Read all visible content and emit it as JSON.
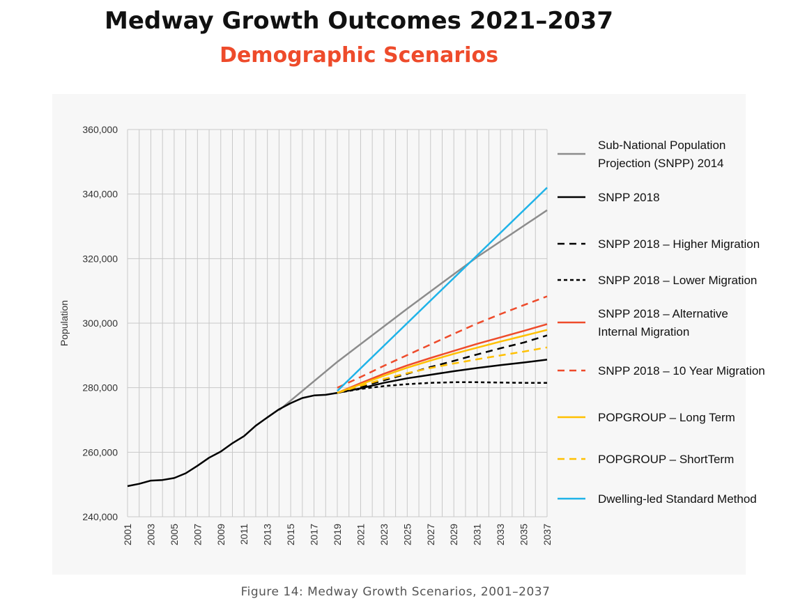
{
  "header": {
    "title": "Medway Growth Outcomes 2021–2037",
    "subtitle": "Demographic Scenarios"
  },
  "caption": "Figure 14: Medway Growth Scenarios, 2001–2037",
  "colors": {
    "title": "#111111",
    "subtitle": "#ee4b2b",
    "panel_background": "#f7f7f7",
    "grid": "#c8c8c8"
  },
  "chart_data": {
    "type": "line",
    "title": "",
    "xlabel": "",
    "ylabel": "Population",
    "xlim": [
      2001,
      2037
    ],
    "ylim": [
      240000,
      360000
    ],
    "grid": true,
    "legend_position": "right",
    "x_ticks": [
      "2001",
      "2003",
      "2005",
      "2007",
      "2009",
      "2011",
      "2013",
      "2015",
      "2017",
      "2019",
      "2021",
      "2023",
      "2025",
      "2027",
      "2029",
      "2031",
      "2033",
      "2035",
      "2037"
    ],
    "y_ticks": [
      "240,000",
      "260,000",
      "280,000",
      "300,000",
      "320,000",
      "340,000",
      "360,000"
    ],
    "y_tick_values": [
      240000,
      260000,
      280000,
      300000,
      320000,
      340000,
      360000
    ],
    "series": [
      {
        "name": "Sub-National Population Projection (SNPP) 2014",
        "legend_lines": [
          "Sub-National Population",
          "Projection (SNPP) 2014"
        ],
        "color": "#8c8c8c",
        "dash": "solid",
        "points": [
          [
            2014,
            273000
          ],
          [
            2019,
            288000
          ],
          [
            2025,
            304500
          ],
          [
            2031,
            320500
          ],
          [
            2037,
            335000
          ]
        ]
      },
      {
        "name": "SNPP 2018",
        "legend_lines": [
          "SNPP 2018"
        ],
        "color": "#000000",
        "dash": "solid",
        "points": [
          [
            2001,
            249500
          ],
          [
            2002,
            250200
          ],
          [
            2003,
            251200
          ],
          [
            2004,
            251400
          ],
          [
            2005,
            252000
          ],
          [
            2006,
            253500
          ],
          [
            2007,
            255800
          ],
          [
            2008,
            258300
          ],
          [
            2009,
            260200
          ],
          [
            2010,
            262800
          ],
          [
            2011,
            265000
          ],
          [
            2012,
            268200
          ],
          [
            2013,
            270800
          ],
          [
            2014,
            273300
          ],
          [
            2015,
            275200
          ],
          [
            2016,
            276800
          ],
          [
            2017,
            277600
          ],
          [
            2018,
            277800
          ],
          [
            2019,
            278400
          ],
          [
            2021,
            279800
          ],
          [
            2023,
            281500
          ],
          [
            2025,
            282900
          ],
          [
            2027,
            284000
          ],
          [
            2029,
            285100
          ],
          [
            2031,
            286100
          ],
          [
            2033,
            287000
          ],
          [
            2035,
            287800
          ],
          [
            2037,
            288700
          ]
        ]
      },
      {
        "name": "SNPP 2018 – Higher Migration",
        "legend_lines": [
          "SNPP 2018 – Higher Migration"
        ],
        "color": "#000000",
        "dash": "long",
        "points": [
          [
            2019,
            278400
          ],
          [
            2021,
            280200
          ],
          [
            2023,
            282300
          ],
          [
            2025,
            284300
          ],
          [
            2027,
            286400
          ],
          [
            2029,
            288300
          ],
          [
            2031,
            290300
          ],
          [
            2033,
            292200
          ],
          [
            2035,
            294000
          ],
          [
            2037,
            296200
          ]
        ]
      },
      {
        "name": "SNPP 2018 – Lower Migration",
        "legend_lines": [
          "SNPP 2018 – Lower Migration"
        ],
        "color": "#000000",
        "dash": "short",
        "points": [
          [
            2019,
            278400
          ],
          [
            2021,
            279600
          ],
          [
            2023,
            280500
          ],
          [
            2025,
            281100
          ],
          [
            2027,
            281500
          ],
          [
            2029,
            281700
          ],
          [
            2031,
            281700
          ],
          [
            2033,
            281600
          ],
          [
            2035,
            281500
          ],
          [
            2037,
            281500
          ]
        ]
      },
      {
        "name": "SNPP 2018 – Alternative Internal Migration",
        "legend_lines": [
          "SNPP 2018 – Alternative",
          "Internal Migration"
        ],
        "color": "#ee4b2b",
        "dash": "solid",
        "points": [
          [
            2019,
            278400
          ],
          [
            2021,
            281400
          ],
          [
            2023,
            284300
          ],
          [
            2025,
            286900
          ],
          [
            2027,
            289200
          ],
          [
            2029,
            291400
          ],
          [
            2031,
            293600
          ],
          [
            2033,
            295600
          ],
          [
            2035,
            297600
          ],
          [
            2037,
            299700
          ]
        ]
      },
      {
        "name": "SNPP 2018 – 10 Year Migration",
        "legend_lines": [
          "SNPP 2018 – 10 Year Migration"
        ],
        "color": "#ee4b2b",
        "dash": "long",
        "points": [
          [
            2019,
            280000
          ],
          [
            2021,
            283300
          ],
          [
            2023,
            286800
          ],
          [
            2025,
            290100
          ],
          [
            2027,
            293400
          ],
          [
            2029,
            296700
          ],
          [
            2031,
            299900
          ],
          [
            2033,
            302800
          ],
          [
            2035,
            305600
          ],
          [
            2037,
            308300
          ]
        ]
      },
      {
        "name": "POPGROUP – Long Term",
        "legend_lines": [
          "POPGROUP – Long Term"
        ],
        "color": "#ffc000",
        "dash": "solid",
        "points": [
          [
            2019,
            278400
          ],
          [
            2021,
            281000
          ],
          [
            2023,
            283700
          ],
          [
            2025,
            286200
          ],
          [
            2027,
            288400
          ],
          [
            2029,
            290500
          ],
          [
            2031,
            292400
          ],
          [
            2033,
            294300
          ],
          [
            2035,
            296100
          ],
          [
            2037,
            297900
          ]
        ]
      },
      {
        "name": "POPGROUP – ShortTerm",
        "legend_lines": [
          "POPGROUP – ShortTerm"
        ],
        "color": "#ffc000",
        "dash": "long",
        "points": [
          [
            2019,
            278400
          ],
          [
            2021,
            280600
          ],
          [
            2023,
            282700
          ],
          [
            2025,
            284500
          ],
          [
            2027,
            286100
          ],
          [
            2029,
            287500
          ],
          [
            2031,
            288800
          ],
          [
            2033,
            290000
          ],
          [
            2035,
            291200
          ],
          [
            2037,
            292500
          ]
        ]
      },
      {
        "name": "Dwelling-led Standard Method",
        "legend_lines": [
          "Dwelling-led Standard Method"
        ],
        "color": "#1fb3e8",
        "dash": "solid",
        "points": [
          [
            2019,
            279000
          ],
          [
            2037,
            342000
          ]
        ]
      }
    ]
  }
}
